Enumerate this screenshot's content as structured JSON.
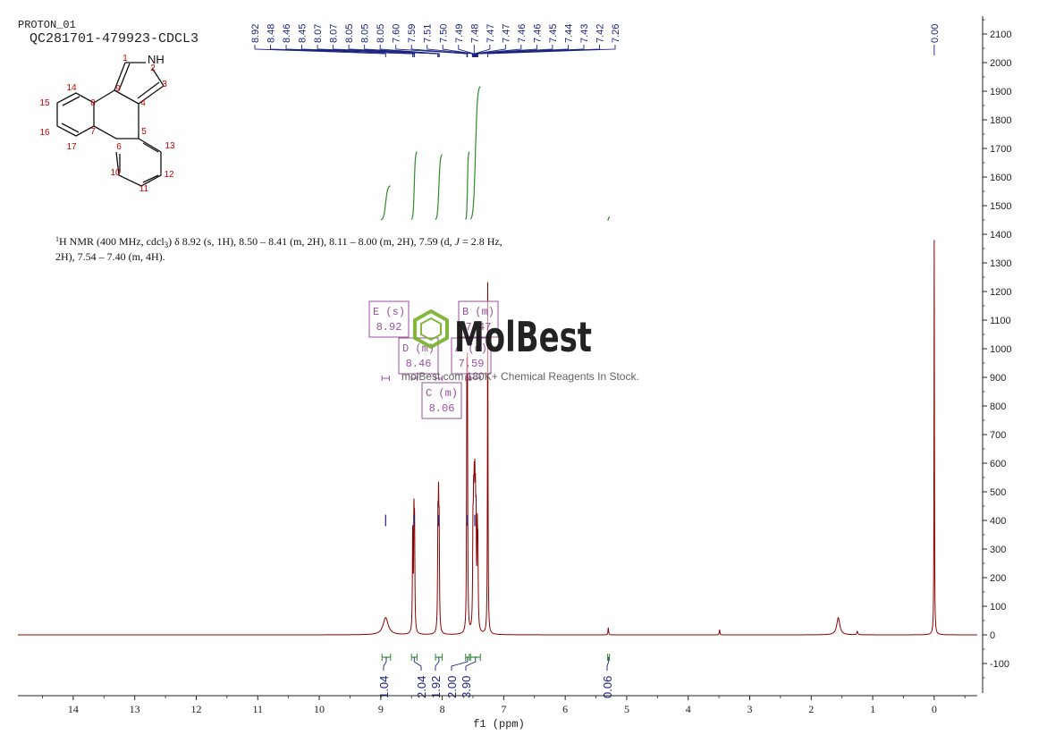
{
  "header": {
    "experiment": "PROTON_01",
    "sample": "QC281701-479923-CDCL3"
  },
  "description": {
    "line1_pre": "H NMR (400 MHz, cdcl",
    "line1_sub": "3",
    "line1_post": ") δ 8.92 (s, 1H), 8.50 – 8.41 (m, 2H), 8.11 – 8.00 (m, 2H), 7.59 (d, ",
    "line1_j": "J",
    "line1_end": " = 2.8 Hz,",
    "line2": "2H), 7.54 – 7.40 (m, 4H).",
    "superscript": "1"
  },
  "structure": {
    "nh_label": "NH",
    "atom_numbers": [
      "1",
      "2",
      "3",
      "4",
      "5",
      "6",
      "7",
      "8",
      "9",
      "10",
      "11",
      "12",
      "13",
      "14",
      "15",
      "16",
      "17"
    ]
  },
  "watermark": {
    "brand": "MolBest",
    "tagline": "molBest.com 180K+ Chemical Reagents In Stock."
  },
  "multiplets": [
    {
      "label": "E (s)",
      "shift": "8.92"
    },
    {
      "label": "D (m)",
      "shift": "8.46"
    },
    {
      "label": "C (m)",
      "shift": "8.06"
    },
    {
      "label": "B (m)",
      "shift": "7.47"
    },
    {
      "label": "A (d)",
      "shift": "7.59"
    }
  ],
  "peak_labels": [
    "8.92",
    "8.48",
    "8.46",
    "8.45",
    "8.07",
    "8.07",
    "8.05",
    "8.05",
    "8.05",
    "7.60",
    "7.59",
    "7.51",
    "7.50",
    "7.49",
    "7.48",
    "7.47",
    "7.47",
    "7.46",
    "7.46",
    "7.45",
    "7.44",
    "7.43",
    "7.42",
    "7.26"
  ],
  "peak_label_tms": "0.00",
  "integrals": [
    {
      "value": "1.04",
      "from": 8.98,
      "to": 8.84
    },
    {
      "value": "2.04",
      "from": 8.5,
      "to": 8.41
    },
    {
      "value": "1.92",
      "from": 8.11,
      "to": 8.0
    },
    {
      "value": "2.00",
      "from": 7.62,
      "to": 7.56
    },
    {
      "value": "3.90",
      "from": 7.54,
      "to": 7.38
    },
    {
      "value": "0.06",
      "from": 5.31,
      "to": 5.28
    }
  ],
  "colors": {
    "spectrum": "#8b0000",
    "peak_label": "#1a237e",
    "integral": "#2e8b2e",
    "multiplet_box": "#9c4fa0",
    "structure_number": "#cc0000",
    "watermark": "#77b12c"
  },
  "chart_data": {
    "type": "line",
    "xlabel": "f1 (ppm)",
    "xlim": [
      14.9,
      -0.7
    ],
    "ylim": [
      -200,
      2200
    ],
    "x_ticks": [
      "14",
      "13",
      "12",
      "11",
      "10",
      "9",
      "8",
      "7",
      "6",
      "5",
      "4",
      "3",
      "2",
      "1",
      "0"
    ],
    "y_ticks": [
      "2100",
      "2000",
      "1900",
      "1800",
      "1700",
      "1600",
      "1500",
      "1400",
      "1300",
      "1200",
      "1100",
      "1000",
      "900",
      "800",
      "700",
      "600",
      "500",
      "400",
      "300",
      "200",
      "100",
      "0",
      "-100"
    ],
    "peaks": [
      {
        "ppm": 8.92,
        "height": 60,
        "width": 0.05
      },
      {
        "ppm": 8.48,
        "height": 340,
        "width": 0.006
      },
      {
        "ppm": 8.46,
        "height": 360,
        "width": 0.006
      },
      {
        "ppm": 8.45,
        "height": 330,
        "width": 0.006
      },
      {
        "ppm": 8.07,
        "height": 340,
        "width": 0.006
      },
      {
        "ppm": 8.06,
        "height": 360,
        "width": 0.006
      },
      {
        "ppm": 8.05,
        "height": 320,
        "width": 0.006
      },
      {
        "ppm": 7.6,
        "height": 800,
        "width": 0.005
      },
      {
        "ppm": 7.59,
        "height": 820,
        "width": 0.005
      },
      {
        "ppm": 7.5,
        "height": 300,
        "width": 0.006
      },
      {
        "ppm": 7.49,
        "height": 330,
        "width": 0.006
      },
      {
        "ppm": 7.48,
        "height": 350,
        "width": 0.006
      },
      {
        "ppm": 7.47,
        "height": 360,
        "width": 0.006
      },
      {
        "ppm": 7.46,
        "height": 320,
        "width": 0.006
      },
      {
        "ppm": 7.45,
        "height": 310,
        "width": 0.006
      },
      {
        "ppm": 7.43,
        "height": 300,
        "width": 0.006
      },
      {
        "ppm": 7.42,
        "height": 250,
        "width": 0.006
      },
      {
        "ppm": 7.26,
        "height": 1230,
        "width": 0.005
      },
      {
        "ppm": 5.3,
        "height": 25,
        "width": 0.006
      },
      {
        "ppm": 3.49,
        "height": 18,
        "width": 0.006
      },
      {
        "ppm": 1.56,
        "height": 60,
        "width": 0.03
      },
      {
        "ppm": 1.25,
        "height": 12,
        "width": 0.01
      },
      {
        "ppm": 0.0,
        "height": 1380,
        "width": 0.004
      }
    ],
    "integral_curves": [
      {
        "from": 9.0,
        "to": 8.84,
        "y_start": 1450,
        "y_end": 1570
      },
      {
        "from": 8.5,
        "to": 8.41,
        "y_start": 1450,
        "y_end": 1690
      },
      {
        "from": 8.11,
        "to": 8.0,
        "y_start": 1450,
        "y_end": 1680
      },
      {
        "from": 7.62,
        "to": 7.56,
        "y_start": 1450,
        "y_end": 1690
      },
      {
        "from": 7.54,
        "to": 7.38,
        "y_start": 1450,
        "y_end": 1920
      },
      {
        "from": 5.31,
        "to": 5.28,
        "y_start": 1450,
        "y_end": 1460
      }
    ]
  }
}
